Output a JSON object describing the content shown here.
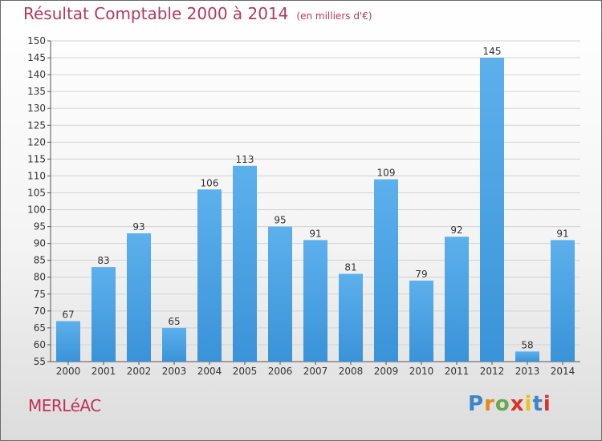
{
  "chart_data": {
    "type": "bar",
    "title": "Résultat Comptable 2000 à 2014",
    "subtitle": "(en milliers d'€)",
    "categories": [
      "2000",
      "2001",
      "2002",
      "2003",
      "2004",
      "2005",
      "2006",
      "2007",
      "2008",
      "2009",
      "2010",
      "2011",
      "2012",
      "2013",
      "2014"
    ],
    "values": [
      67,
      83,
      93,
      65,
      106,
      113,
      95,
      91,
      81,
      109,
      79,
      92,
      145,
      58,
      91
    ],
    "ylim": [
      55,
      150
    ],
    "ytick_step": 5,
    "grid": true,
    "bar_color": "#3a93d8",
    "bar_color_light": "#5cb0ec",
    "xlabel": "",
    "ylabel": ""
  },
  "place_name": "MERLéAC",
  "logo": {
    "text": "Proxiti",
    "letter_colors": [
      "#3a86c8",
      "#e8861e",
      "#6aa84f",
      "#d9322a",
      "#e8c21e",
      "#3a86c8",
      "#d9322a"
    ]
  },
  "colors": {
    "title": "#b03a5b",
    "place": "#c0305a"
  }
}
